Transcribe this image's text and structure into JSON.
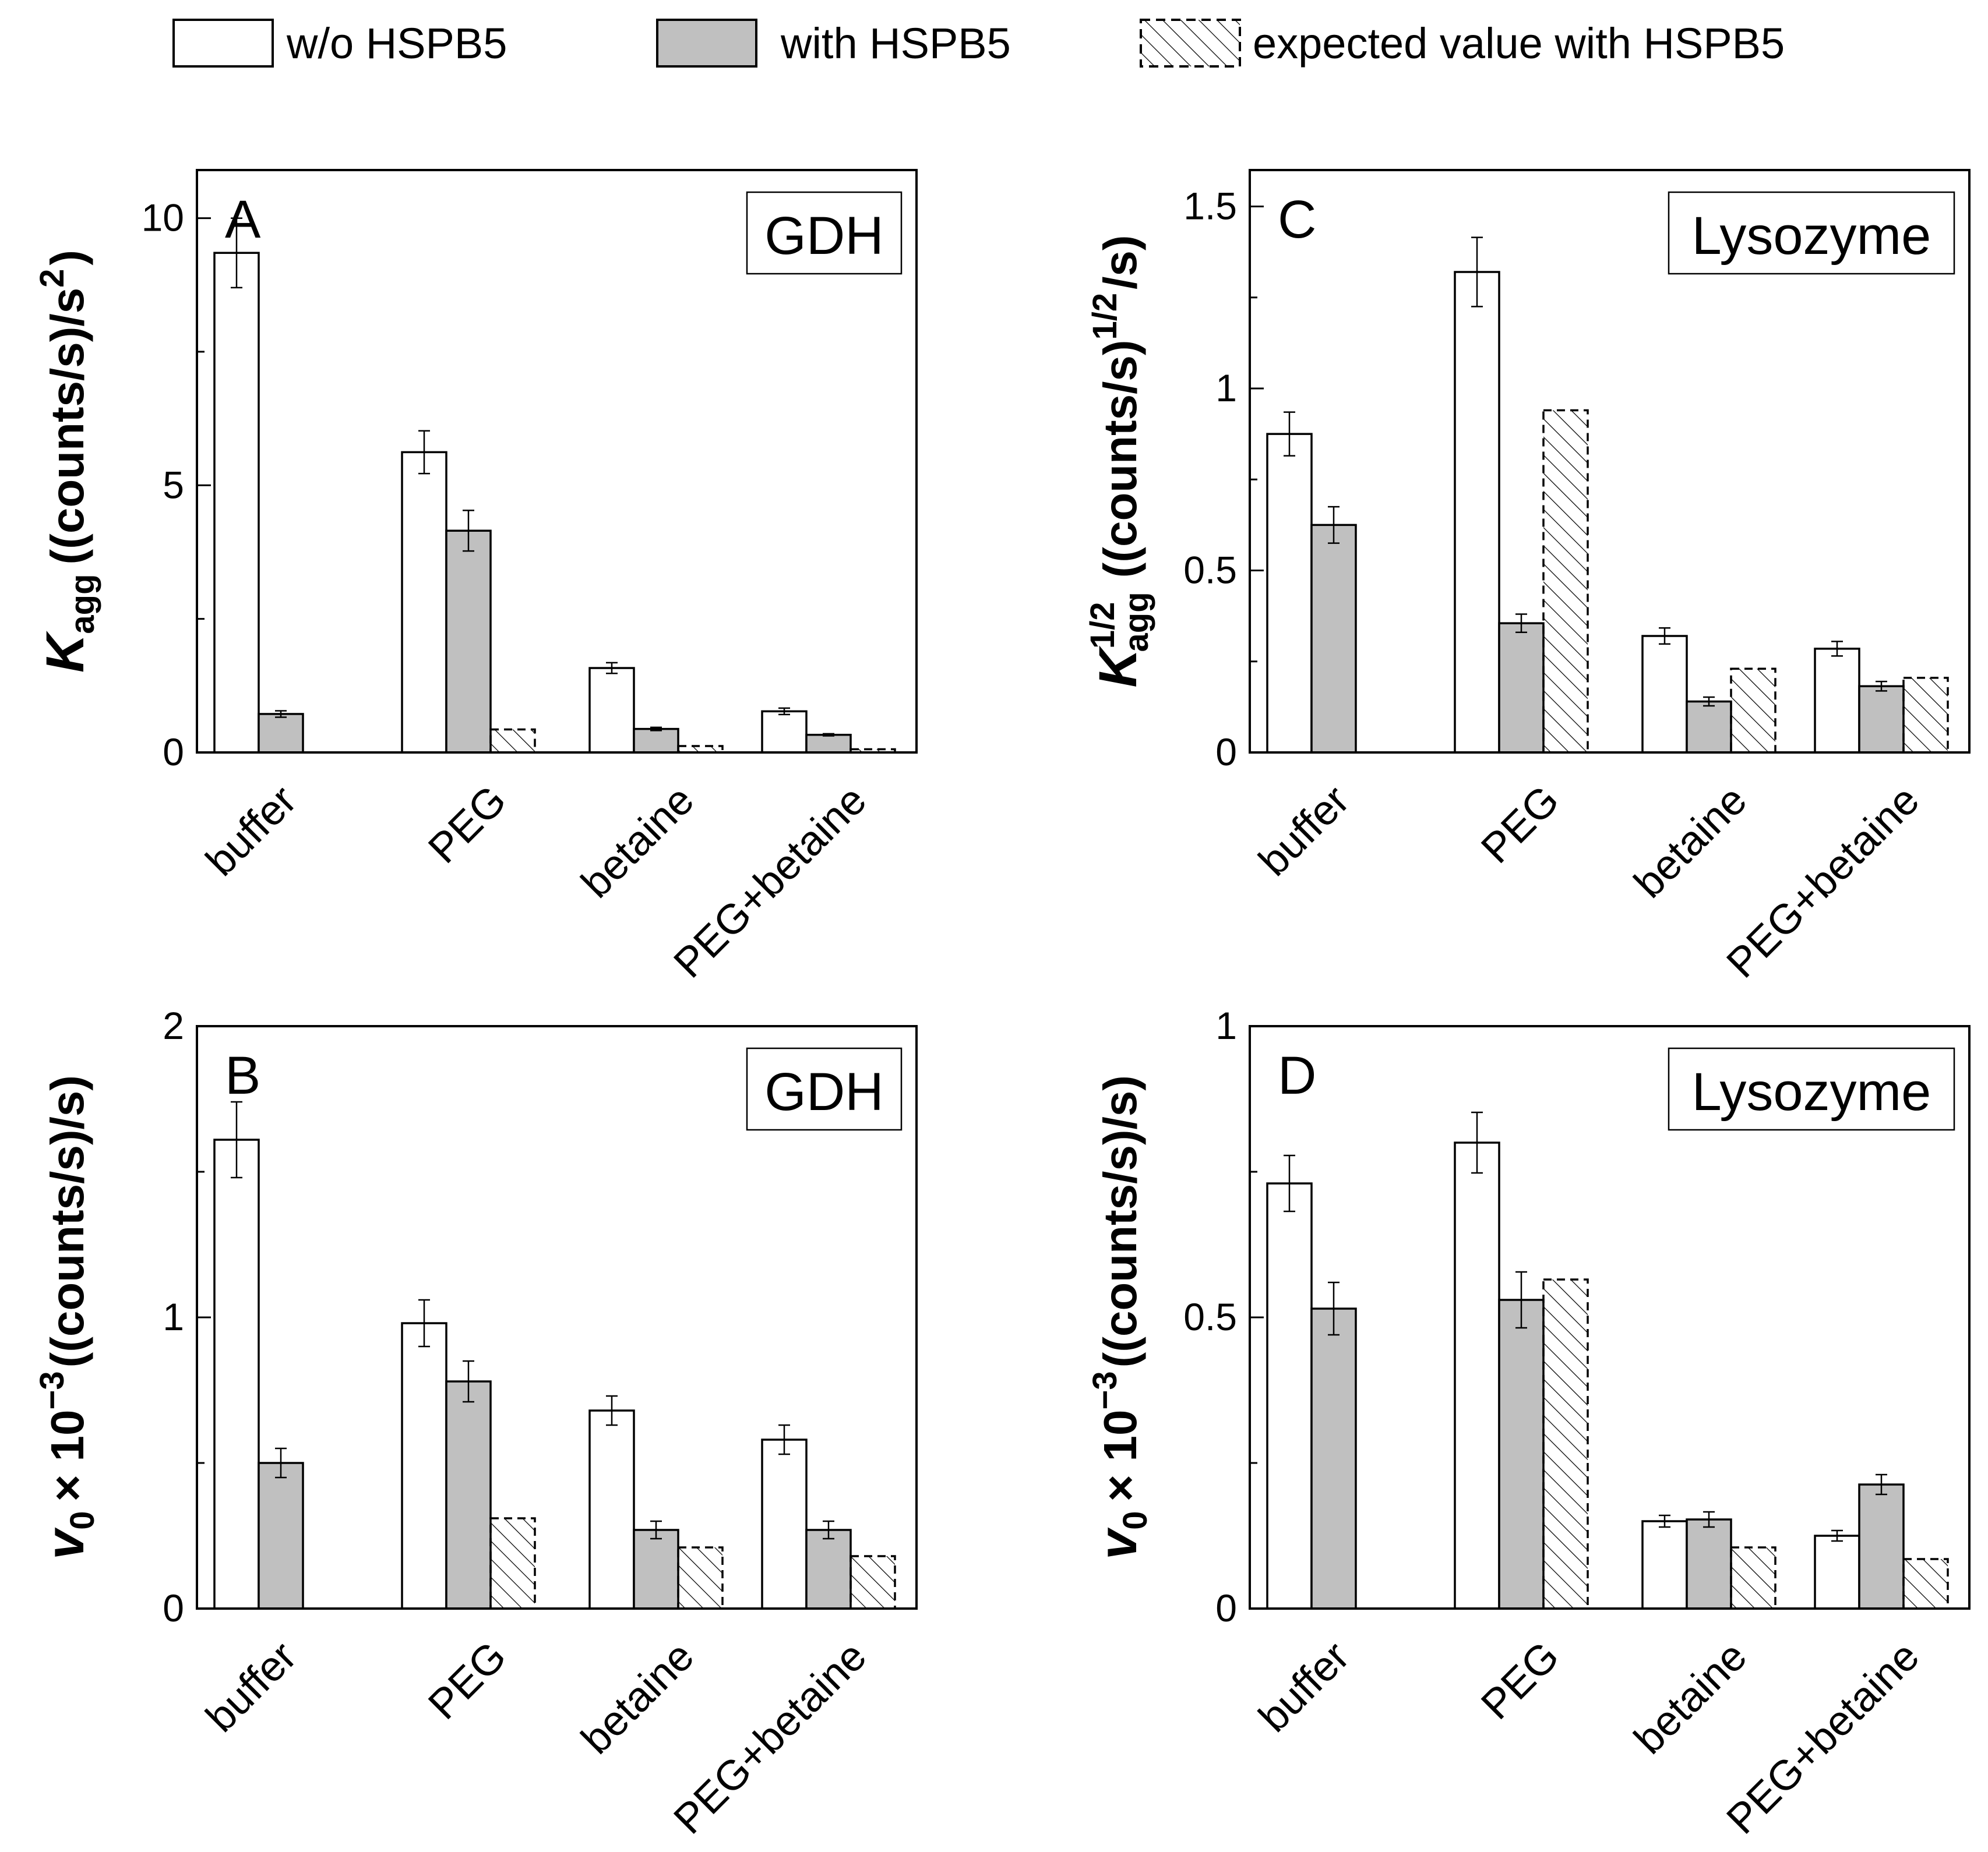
{
  "legend": {
    "without": "w/o HSPB5",
    "with": "with HSPB5",
    "expected": "expected value with HSPB5"
  },
  "colors": {
    "without_fill": "#ffffff",
    "with_fill": "#c0c0c0",
    "axis": "#000000"
  },
  "chart_data": [
    {
      "id": "A",
      "type": "bar",
      "panel_label": "A",
      "protein": "GDH",
      "ylabel_main": "K",
      "ylabel_sub": "agg",
      "ylabel_rest": "((counts/s)/s",
      "ylabel_sup": "2",
      "ylabel_tail": ")",
      "ylim": [
        0,
        10.9
      ],
      "yticks": [
        0,
        5,
        10
      ],
      "ytick_labels": [
        "0",
        "5",
        "10"
      ],
      "categories": [
        "buffer",
        "PEG",
        "betaine",
        "PEG+betaine"
      ],
      "series": [
        {
          "name": "w/o HSPB5",
          "values": [
            9.35,
            5.62,
            1.58,
            0.77
          ],
          "errors": [
            0.65,
            0.4,
            0.1,
            0.06
          ]
        },
        {
          "name": "with HSPB5",
          "values": [
            0.72,
            4.15,
            0.44,
            0.33
          ],
          "errors": [
            0.06,
            0.38,
            0.03,
            0.02
          ]
        },
        {
          "name": "expected value with HSPB5",
          "values": [
            null,
            0.43,
            0.12,
            0.06
          ],
          "errors": [
            null,
            null,
            null,
            null
          ]
        }
      ]
    },
    {
      "id": "B",
      "type": "bar",
      "panel_label": "B",
      "protein": "GDH",
      "ylabel_main": "v",
      "ylabel_sub": "0",
      "ylabel_rest": "× 10",
      "ylabel_sup": "−3",
      "ylabel_tail": "((counts/s)/s)",
      "ylim": [
        0,
        2
      ],
      "yticks": [
        0,
        1,
        2
      ],
      "ytick_labels": [
        "0",
        "1",
        "2"
      ],
      "categories": [
        "buffer",
        "PEG",
        "betaine",
        "PEG+betaine"
      ],
      "series": [
        {
          "name": "w/o HSPB5",
          "values": [
            1.61,
            0.98,
            0.68,
            0.58
          ],
          "errors": [
            0.13,
            0.08,
            0.05,
            0.05
          ]
        },
        {
          "name": "with HSPB5",
          "values": [
            0.5,
            0.78,
            0.27,
            0.27
          ],
          "errors": [
            0.05,
            0.07,
            0.03,
            0.03
          ]
        },
        {
          "name": "expected value with HSPB5",
          "values": [
            null,
            0.31,
            0.21,
            0.18
          ],
          "errors": [
            null,
            null,
            null,
            null
          ]
        }
      ]
    },
    {
      "id": "C",
      "type": "bar",
      "panel_label": "C",
      "protein": "Lysozyme",
      "ylabel_main": "K",
      "ylabel_sub": "agg",
      "ylabel_sup_main": "1/2",
      "ylabel_rest": "((counts/s)",
      "ylabel_sup": "1/2",
      "ylabel_tail": "/s)",
      "ylim": [
        0,
        1.6
      ],
      "yticks": [
        0,
        0.5,
        1,
        1.5
      ],
      "ytick_labels": [
        "0",
        "0.5",
        "1",
        "1.5"
      ],
      "categories": [
        "buffer",
        "PEG",
        "betaine",
        "PEG+betaine"
      ],
      "series": [
        {
          "name": "w/o HSPB5",
          "values": [
            0.875,
            1.32,
            0.32,
            0.285
          ],
          "errors": [
            0.06,
            0.095,
            0.022,
            0.02
          ]
        },
        {
          "name": "with HSPB5",
          "values": [
            0.625,
            0.355,
            0.14,
            0.182
          ],
          "errors": [
            0.05,
            0.025,
            0.012,
            0.013
          ]
        },
        {
          "name": "expected value with HSPB5",
          "values": [
            null,
            0.94,
            0.23,
            0.205
          ],
          "errors": [
            null,
            null,
            null,
            null
          ]
        }
      ]
    },
    {
      "id": "D",
      "type": "bar",
      "panel_label": "D",
      "protein": "Lysozyme",
      "ylabel_main": "v",
      "ylabel_sub": "0",
      "ylabel_rest": "× 10",
      "ylabel_sup": "−3",
      "ylabel_tail": "((counts/s)/s)",
      "ylim": [
        0,
        1
      ],
      "yticks": [
        0,
        0.5,
        1
      ],
      "ytick_labels": [
        "0",
        "0.5",
        "1"
      ],
      "categories": [
        "buffer",
        "PEG",
        "betaine",
        "PEG+betaine"
      ],
      "series": [
        {
          "name": "w/o HSPB5",
          "values": [
            0.73,
            0.8,
            0.15,
            0.125
          ],
          "errors": [
            0.048,
            0.052,
            0.01,
            0.009
          ]
        },
        {
          "name": "with HSPB5",
          "values": [
            0.515,
            0.53,
            0.153,
            0.213
          ],
          "errors": [
            0.045,
            0.048,
            0.013,
            0.017
          ]
        },
        {
          "name": "expected value with HSPB5",
          "values": [
            null,
            0.565,
            0.105,
            0.085
          ],
          "errors": [
            null,
            null,
            null,
            null
          ]
        }
      ]
    }
  ]
}
